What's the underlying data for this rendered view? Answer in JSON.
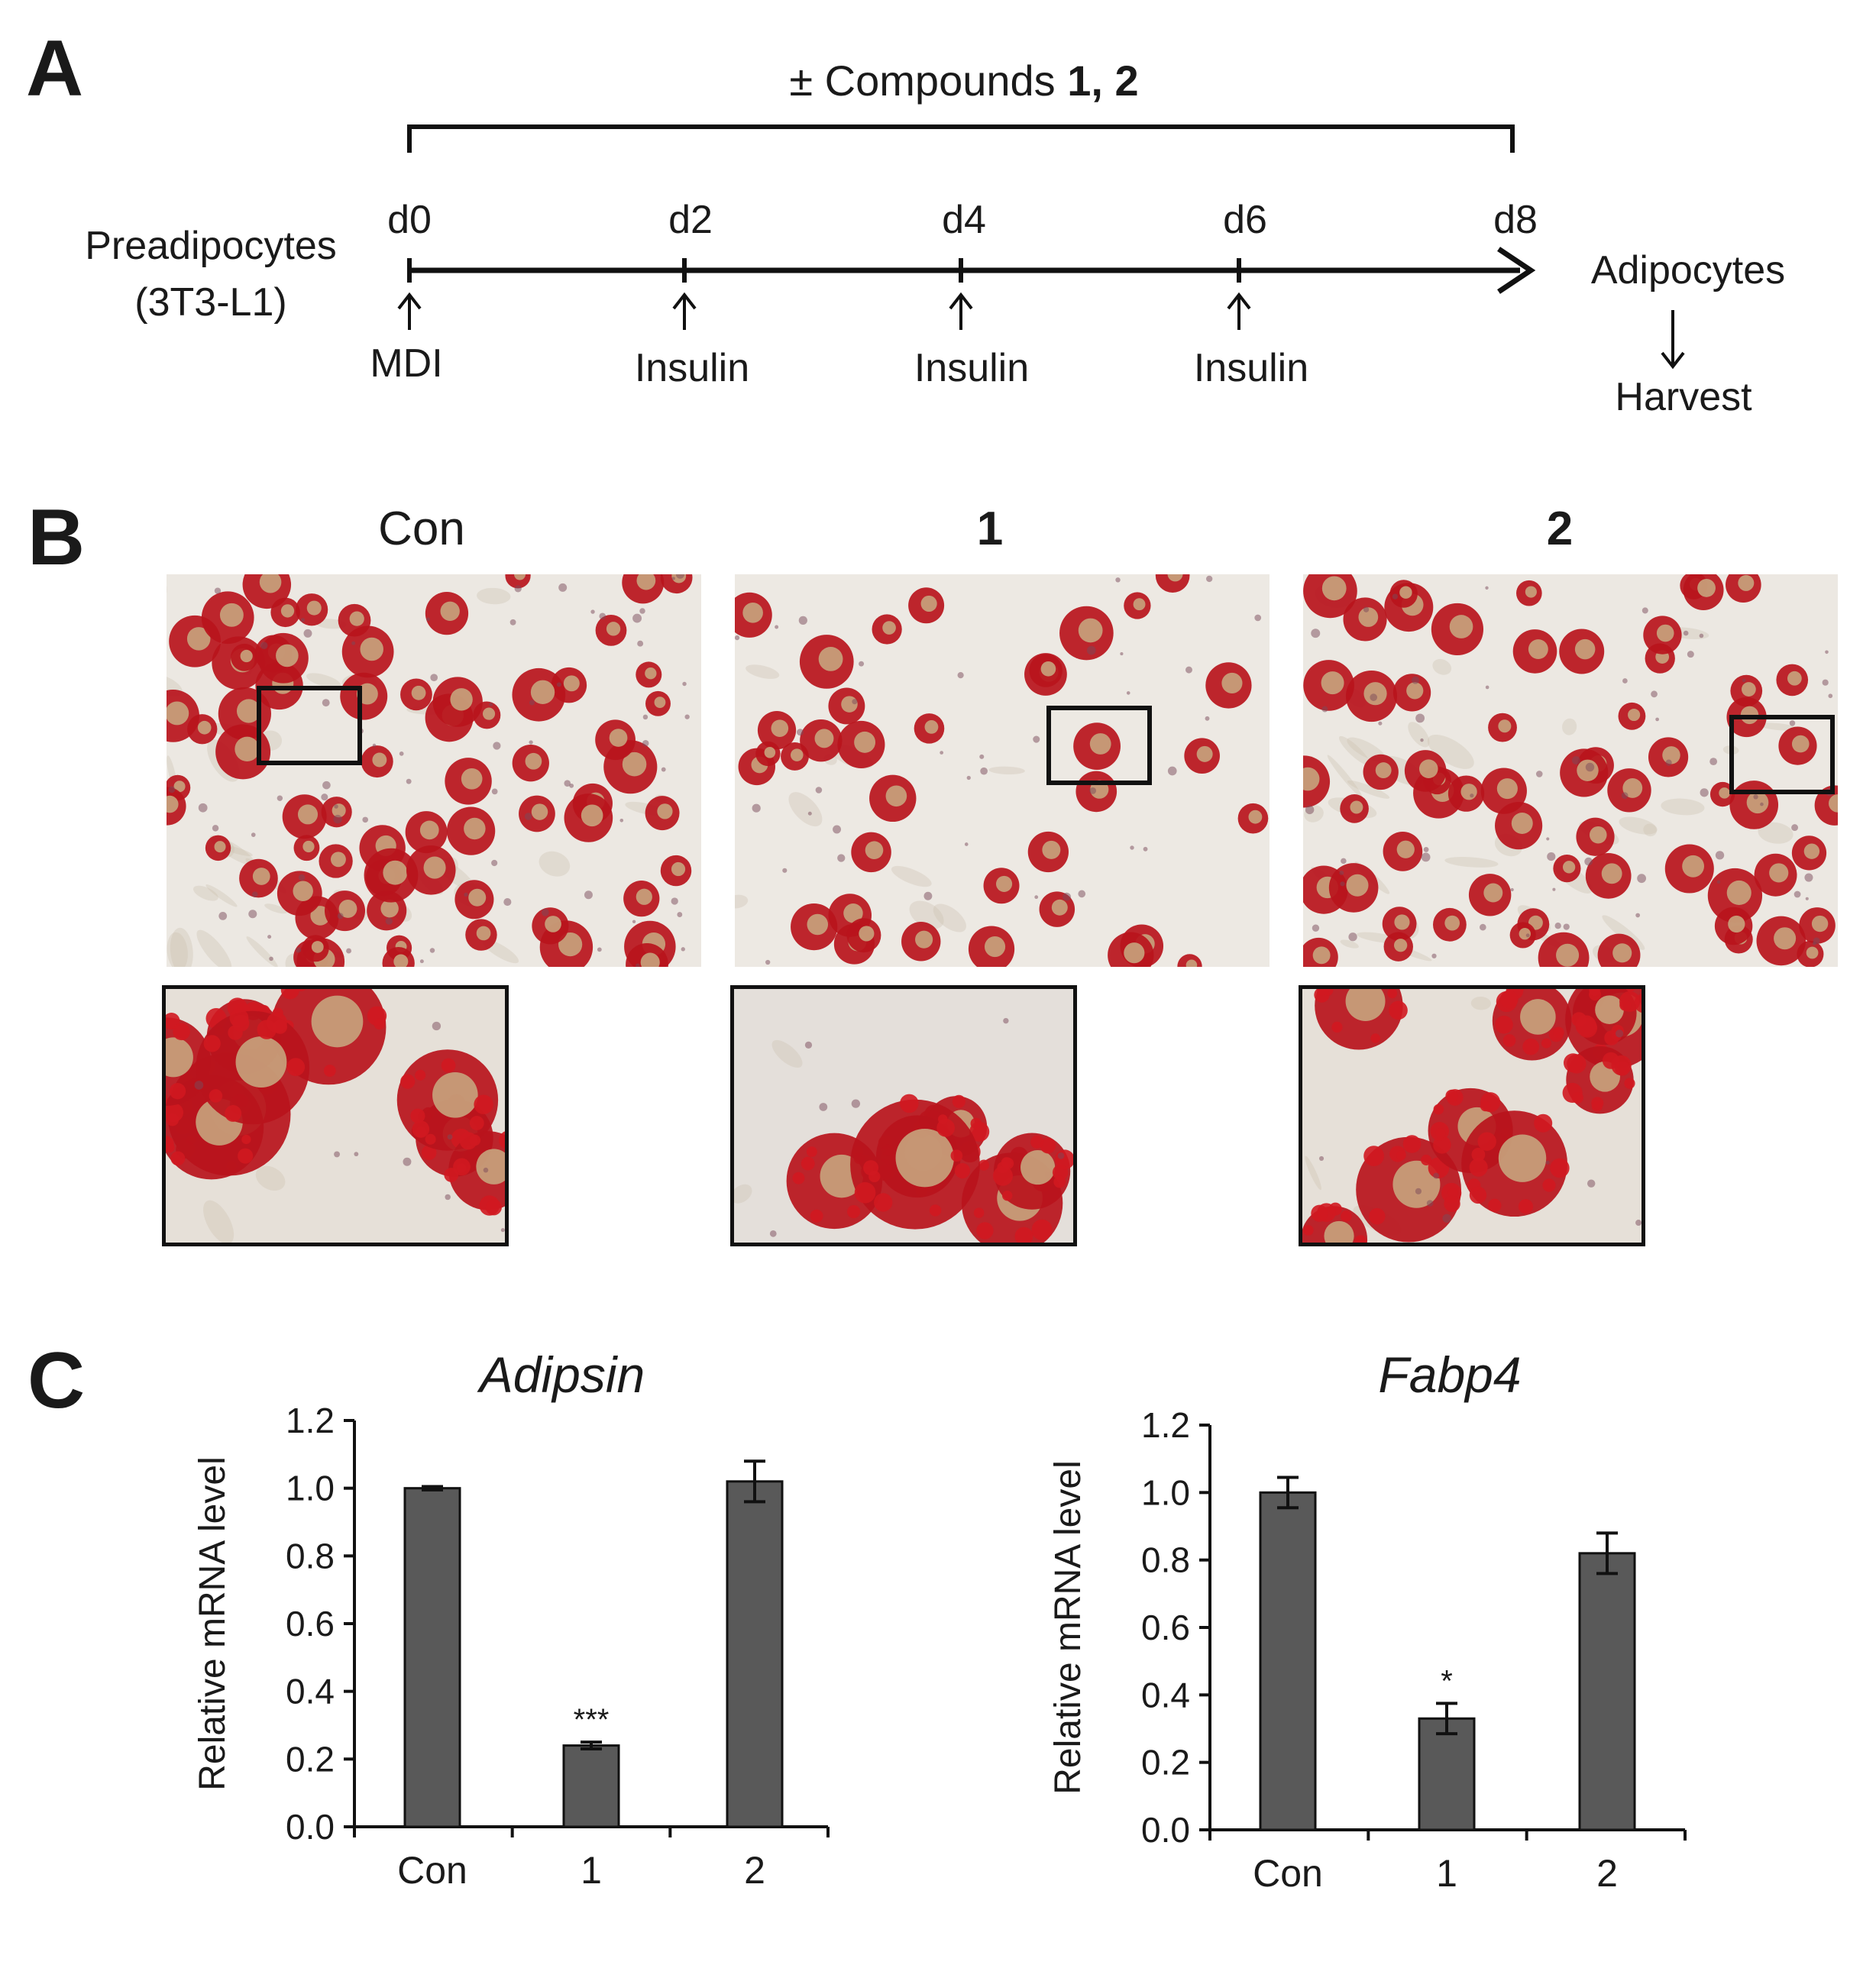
{
  "panel_a": {
    "letter": "A",
    "compounds_prefix": "± Compounds",
    "compounds_numbers": "1, 2",
    "start_cell": "Preadipocytes",
    "start_cell_line": "(3T3-L1)",
    "days": [
      "d0",
      "d2",
      "d4",
      "d6",
      "d8"
    ],
    "treatments": [
      "MDI",
      "Insulin",
      "Insulin",
      "Insulin"
    ],
    "end_cell": "Adipocytes",
    "end_action": "Harvest"
  },
  "panel_b": {
    "letter": "B",
    "groups": [
      "Con",
      "1",
      "2"
    ]
  },
  "panel_c": {
    "letter": "C"
  },
  "chart_data": [
    {
      "type": "bar",
      "title": "Adipsin",
      "ylabel": "Relative mRNA level",
      "xlabel": "",
      "categories": [
        "Con",
        "1",
        "2"
      ],
      "values": [
        1.0,
        0.24,
        1.02
      ],
      "errors": [
        0.005,
        0.01,
        0.06
      ],
      "significance": [
        "",
        "***",
        ""
      ],
      "ylim": [
        0,
        1.2
      ],
      "yticks": [
        "0.0",
        "0.2",
        "0.4",
        "0.6",
        "0.8",
        "1.0",
        "1.2"
      ],
      "bar_color": "#595959",
      "grid": false
    },
    {
      "type": "bar",
      "title": "Fabp4",
      "ylabel": "Relative mRNA level",
      "xlabel": "",
      "categories": [
        "Con",
        "1",
        "2"
      ],
      "values": [
        1.0,
        0.33,
        0.82
      ],
      "errors": [
        0.045,
        0.045,
        0.06
      ],
      "significance": [
        "",
        "*",
        ""
      ],
      "ylim": [
        0,
        1.2
      ],
      "yticks": [
        "0.0",
        "0.2",
        "0.4",
        "0.6",
        "0.8",
        "1.0",
        "1.2"
      ],
      "bar_color": "#595959",
      "grid": false
    }
  ]
}
